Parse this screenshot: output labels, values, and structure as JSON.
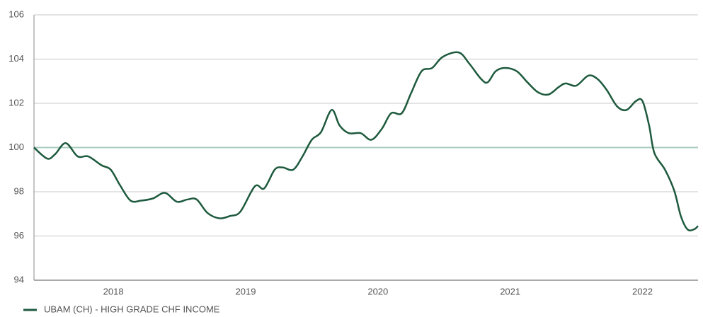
{
  "chart_data": {
    "type": "line",
    "x": [
      2017.4,
      2017.5,
      2017.56,
      2017.64,
      2017.73,
      2017.81,
      2017.91,
      2017.98,
      2018.05,
      2018.13,
      2018.21,
      2018.3,
      2018.39,
      2018.48,
      2018.56,
      2018.63,
      2018.71,
      2018.8,
      2018.88,
      2018.96,
      2019.07,
      2019.14,
      2019.22,
      2019.28,
      2019.36,
      2019.43,
      2019.5,
      2019.57,
      2019.65,
      2019.71,
      2019.78,
      2019.87,
      2019.95,
      2020.03,
      2020.1,
      2020.18,
      2020.25,
      2020.33,
      2020.41,
      2020.49,
      2020.61,
      2020.69,
      2020.78,
      2020.83,
      2020.89,
      2020.96,
      2021.05,
      2021.13,
      2021.21,
      2021.29,
      2021.37,
      2021.42,
      2021.5,
      2021.59,
      2021.66,
      2021.73,
      2021.81,
      2021.88,
      2021.95,
      2022.0,
      2022.05,
      2022.09,
      2022.17,
      2022.24,
      2022.29,
      2022.34,
      2022.39,
      2022.42
    ],
    "series": [
      {
        "name": "UBAM (CH) - HIGH GRADE CHF INCOME",
        "color": "#1e5a3e",
        "values": [
          100.0,
          99.5,
          99.7,
          100.2,
          99.6,
          99.6,
          99.2,
          99.0,
          98.3,
          97.6,
          97.6,
          97.7,
          97.95,
          97.55,
          97.65,
          97.65,
          97.05,
          96.8,
          96.9,
          97.1,
          98.25,
          98.15,
          99.0,
          99.1,
          99.0,
          99.6,
          100.35,
          100.7,
          101.7,
          101.0,
          100.65,
          100.65,
          100.35,
          100.85,
          101.55,
          101.55,
          102.45,
          103.45,
          103.6,
          104.1,
          104.3,
          103.8,
          103.1,
          102.95,
          103.45,
          103.6,
          103.45,
          102.95,
          102.5,
          102.4,
          102.75,
          102.9,
          102.8,
          103.25,
          103.1,
          102.6,
          101.85,
          101.7,
          102.1,
          102.1,
          101.0,
          99.75,
          99.0,
          98.05,
          96.9,
          96.3,
          96.3,
          96.45
        ]
      }
    ],
    "xlim": [
      2017.4,
      2022.42
    ],
    "xticks": [
      2018,
      2019,
      2020,
      2021,
      2022
    ],
    "ylim": [
      94,
      106
    ],
    "yticks": [
      94,
      96,
      98,
      100,
      102,
      104,
      106
    ],
    "grid": true,
    "grid_color": "#c8c8c8",
    "baseline": 100,
    "baseline_color": "#a9cdbf",
    "legend": "bottom-left"
  }
}
